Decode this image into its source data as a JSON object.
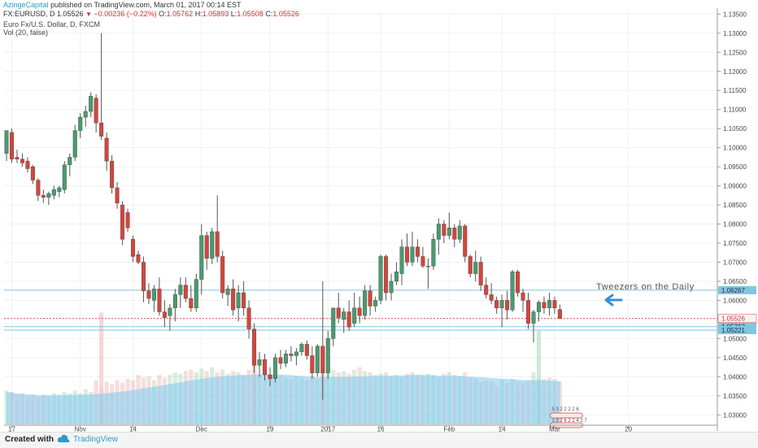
{
  "header": {
    "author": "AzingeCapital",
    "published_text": "published on TradingView.com, March 01, 2017 00:14 EST",
    "symbol": "FX:EURUSD, D",
    "last_price": "1.05526",
    "change": "−0.00236 (−0.22%)",
    "o_label": "O:",
    "o_value": "1.05762",
    "h_label": "H:",
    "h_value": "1.05893",
    "l_label": "L:",
    "l_value": "1.05508",
    "c_label": "C:",
    "c_value": "1.05526",
    "description": "Euro Fx/U.S. Dollar, D, FXCM",
    "volume_indicator": "Vol (20, false)"
  },
  "footer": {
    "created_with": "Created with",
    "brand": "TradingView"
  },
  "colors": {
    "up": "#4a9a6f",
    "down": "#d3463c",
    "volume": "#8ccfe8",
    "volume_ma": "#7fc9ef",
    "accent": "#2a9ec4"
  },
  "chart_data": {
    "type": "candlestick",
    "symbol": "EURUSD",
    "timeframe": "D",
    "y_axis": {
      "range": [
        1.0275,
        1.1355
      ],
      "ticks": [
        "1.13500",
        "1.13000",
        "1.12500",
        "1.12000",
        "1.11500",
        "1.11000",
        "1.10500",
        "1.10000",
        "1.09500",
        "1.09000",
        "1.08500",
        "1.08000",
        "1.07500",
        "1.07000",
        "1.06500",
        "1.06000",
        "1.05500",
        "1.05000",
        "1.04500",
        "1.04000",
        "1.03500",
        "1.03000"
      ]
    },
    "x_axis": {
      "tick_labels": [
        {
          "label": "17",
          "index": 1
        },
        {
          "label": "Nov",
          "index": 14
        },
        {
          "label": "14",
          "index": 24
        },
        {
          "label": "Dec",
          "index": 37
        },
        {
          "label": "19",
          "index": 50
        },
        {
          "label": "2017",
          "index": 61
        },
        {
          "label": "16",
          "index": 71
        },
        {
          "label": "Feb",
          "index": 84
        },
        {
          "label": "14",
          "index": 94
        },
        {
          "label": "Mar",
          "index": 104
        },
        {
          "label": "20",
          "index": 118
        }
      ]
    },
    "candles": [
      [
        1.0985,
        1.1045,
        1.0965,
        1.1045
      ],
      [
        1.104,
        1.105,
        1.096,
        1.097
      ],
      [
        1.0975,
        1.0995,
        1.096,
        1.097
      ],
      [
        1.097,
        1.0985,
        1.095,
        1.096
      ],
      [
        1.0965,
        1.0975,
        1.0935,
        1.0945
      ],
      [
        1.095,
        1.0955,
        1.0905,
        1.0915
      ],
      [
        1.0915,
        1.092,
        1.086,
        1.0875
      ],
      [
        1.0875,
        1.089,
        1.0855,
        1.087
      ],
      [
        1.087,
        1.0885,
        1.085,
        1.088
      ],
      [
        1.0875,
        1.09,
        1.0865,
        1.089
      ],
      [
        1.0885,
        1.09,
        1.087,
        1.0895
      ],
      [
        1.089,
        1.0965,
        1.088,
        1.0955
      ],
      [
        1.0955,
        1.0985,
        1.0925,
        1.0975
      ],
      [
        1.0975,
        1.106,
        1.0965,
        1.1045
      ],
      [
        1.1045,
        1.109,
        1.1025,
        1.108
      ],
      [
        1.108,
        1.111,
        1.1055,
        1.1095
      ],
      [
        1.1095,
        1.1145,
        1.108,
        1.1135
      ],
      [
        1.113,
        1.114,
        1.104,
        1.1065
      ],
      [
        1.1065,
        1.13,
        1.102,
        1.103
      ],
      [
        1.1025,
        1.104,
        1.094,
        1.0965
      ],
      [
        1.0965,
        1.098,
        1.088,
        1.0895
      ],
      [
        1.0895,
        1.091,
        1.084,
        1.0855
      ],
      [
        1.085,
        1.086,
        1.0745,
        1.076
      ],
      [
        1.083,
        1.084,
        1.078,
        1.079
      ],
      [
        1.076,
        1.077,
        1.07,
        1.0715
      ],
      [
        1.072,
        1.073,
        1.0695,
        1.07
      ],
      [
        1.07,
        1.0715,
        1.0595,
        1.0625
      ],
      [
        1.0625,
        1.0645,
        1.059,
        1.0605
      ],
      [
        1.06,
        1.064,
        1.057,
        1.063
      ],
      [
        1.063,
        1.066,
        1.056,
        1.057
      ],
      [
        1.057,
        1.06,
        1.053,
        1.0555
      ],
      [
        1.056,
        1.059,
        1.052,
        1.058
      ],
      [
        1.058,
        1.063,
        1.0545,
        1.0615
      ],
      [
        1.0615,
        1.066,
        1.058,
        1.064
      ],
      [
        1.064,
        1.066,
        1.0595,
        1.0605
      ],
      [
        1.0605,
        1.064,
        1.057,
        1.058
      ],
      [
        1.058,
        1.067,
        1.057,
        1.0655
      ],
      [
        1.0655,
        1.08,
        1.0615,
        1.077
      ],
      [
        1.077,
        1.078,
        1.068,
        1.071
      ],
      [
        1.071,
        1.079,
        1.0695,
        1.078
      ],
      [
        1.078,
        1.0875,
        1.07,
        1.0715
      ],
      [
        1.0715,
        1.073,
        1.0605,
        1.062
      ],
      [
        1.0615,
        1.064,
        1.0585,
        1.063
      ],
      [
        1.063,
        1.0655,
        1.056,
        1.0575
      ],
      [
        1.058,
        1.064,
        1.0545,
        1.062
      ],
      [
        1.062,
        1.065,
        1.056,
        1.058
      ],
      [
        1.058,
        1.06,
        1.05,
        1.0525
      ],
      [
        1.0525,
        1.054,
        1.041,
        1.043
      ],
      [
        1.043,
        1.0465,
        1.04,
        1.0445
      ],
      [
        1.0445,
        1.046,
        1.039,
        1.0405
      ],
      [
        1.0405,
        1.0425,
        1.0375,
        1.0395
      ],
      [
        1.0395,
        1.046,
        1.0385,
        1.045
      ],
      [
        1.045,
        1.047,
        1.042,
        1.0435
      ],
      [
        1.0435,
        1.047,
        1.0425,
        1.046
      ],
      [
        1.046,
        1.048,
        1.044,
        1.0455
      ],
      [
        1.0455,
        1.0475,
        1.043,
        1.0465
      ],
      [
        1.0465,
        1.049,
        1.0455,
        1.0485
      ],
      [
        1.0485,
        1.0495,
        1.0445,
        1.0455
      ],
      [
        1.0455,
        1.048,
        1.0395,
        1.041
      ],
      [
        1.041,
        1.0485,
        1.04,
        1.048
      ],
      [
        1.048,
        1.065,
        1.034,
        1.041
      ],
      [
        1.041,
        1.052,
        1.0395,
        1.05
      ],
      [
        1.05,
        1.058,
        1.048,
        1.058
      ],
      [
        1.058,
        1.062,
        1.054,
        1.0555
      ],
      [
        1.055,
        1.058,
        1.0515,
        1.057
      ],
      [
        1.057,
        1.06,
        1.052,
        1.053
      ],
      [
        1.054,
        1.062,
        1.053,
        1.058
      ],
      [
        1.058,
        1.061,
        1.054,
        1.056
      ],
      [
        1.056,
        1.064,
        1.055,
        1.0625
      ],
      [
        1.0625,
        1.064,
        1.056,
        1.0585
      ],
      [
        1.0585,
        1.061,
        1.057,
        1.06
      ],
      [
        1.06,
        1.072,
        1.059,
        1.0715
      ],
      [
        1.0715,
        1.072,
        1.06,
        1.062
      ],
      [
        1.062,
        1.067,
        1.06,
        1.065
      ],
      [
        1.065,
        1.07,
        1.064,
        1.0675
      ],
      [
        1.067,
        1.076,
        1.064,
        1.074
      ],
      [
        1.074,
        1.0775,
        1.069,
        1.07
      ],
      [
        1.07,
        1.078,
        1.069,
        1.074
      ],
      [
        1.074,
        1.076,
        1.07,
        1.0715
      ],
      [
        1.0715,
        1.074,
        1.0685,
        1.069
      ],
      [
        1.069,
        1.071,
        1.063,
        1.069
      ],
      [
        1.069,
        1.0775,
        1.068,
        1.076
      ],
      [
        1.076,
        1.0815,
        1.072,
        1.08
      ],
      [
        1.08,
        1.081,
        1.075,
        1.077
      ],
      [
        1.077,
        1.083,
        1.076,
        1.079
      ],
      [
        1.079,
        1.08,
        1.074,
        1.076
      ],
      [
        1.076,
        1.081,
        1.075,
        1.0795
      ],
      [
        1.0795,
        1.08,
        1.07,
        1.0715
      ],
      [
        1.0715,
        1.072,
        1.066,
        1.067
      ],
      [
        1.067,
        1.073,
        1.065,
        1.07
      ],
      [
        1.07,
        1.0715,
        1.0625,
        1.064
      ],
      [
        1.064,
        1.066,
        1.0605,
        1.0615
      ],
      [
        1.0615,
        1.0645,
        1.059,
        1.06
      ],
      [
        1.06,
        1.061,
        1.0565,
        1.058
      ],
      [
        1.058,
        1.0615,
        1.053,
        1.06
      ],
      [
        1.06,
        1.0625,
        1.055,
        1.0575
      ],
      [
        1.0575,
        1.068,
        1.057,
        1.0675
      ],
      [
        1.0675,
        1.068,
        1.061,
        1.062
      ],
      [
        1.062,
        1.063,
        1.057,
        1.06
      ],
      [
        1.06,
        1.062,
        1.0525,
        1.054
      ],
      [
        1.054,
        1.0575,
        1.049,
        1.057
      ],
      [
        1.057,
        1.06,
        1.0545,
        1.0595
      ],
      [
        1.0595,
        1.061,
        1.0565,
        1.058
      ],
      [
        1.058,
        1.062,
        1.056,
        1.06
      ],
      [
        1.06,
        1.061,
        1.0565,
        1.058
      ],
      [
        1.0576,
        1.0589,
        1.0551,
        1.0553
      ]
    ],
    "volume": [
      0.26,
      0.25,
      0.23,
      0.24,
      0.22,
      0.23,
      0.21,
      0.23,
      0.22,
      0.24,
      0.23,
      0.25,
      0.24,
      0.26,
      0.24,
      0.27,
      0.25,
      0.34,
      0.28,
      0.33,
      0.31,
      0.34,
      0.32,
      0.35,
      0.34,
      0.38,
      0.36,
      0.37,
      0.34,
      0.38,
      0.36,
      0.38,
      0.4,
      0.39,
      0.41,
      0.42,
      0.4,
      0.43,
      0.41,
      0.44,
      0.4,
      0.42,
      0.39,
      0.41,
      0.4,
      0.38,
      0.42,
      0.41,
      0.38,
      0.36,
      0.37,
      0.35,
      0.38,
      0.36,
      0.35,
      0.37,
      0.36,
      0.34,
      0.37,
      0.35,
      0.45,
      0.4,
      0.42,
      0.4,
      0.41,
      0.39,
      0.42,
      0.44,
      0.41,
      0.4,
      0.38,
      0.39,
      0.4,
      0.37,
      0.38,
      0.36,
      0.39,
      0.4,
      0.38,
      0.37,
      0.39,
      0.38,
      0.36,
      0.39,
      0.4,
      0.38,
      0.37,
      0.4,
      0.36,
      0.35,
      0.33,
      0.34,
      0.33,
      0.3,
      0.34,
      0.32,
      0.35,
      0.33,
      0.32,
      0.34,
      0.4,
      0.36,
      0.35,
      0.36,
      0.35,
      0.33
    ],
    "volume_max_ref": 1.0,
    "volume_spikes": [
      {
        "index": 18,
        "value": 0.86
      },
      {
        "index": 47,
        "value": 0.6
      },
      {
        "index": 60,
        "value": 0.58
      },
      {
        "index": 101,
        "value": 0.72
      }
    ],
    "current_price": {
      "value": 1.05526,
      "label": "1.05526"
    },
    "price_labels": [
      {
        "value": 1.06267,
        "label": "1.06267"
      },
      {
        "value": 1.05312,
        "label": "1.05312"
      },
      {
        "value": 1.05221,
        "label": "1.05221"
      }
    ],
    "annotation": {
      "text": "Tweezers on the Daily"
    },
    "events_label": "5 3 2 2 2 2 6",
    "events_label2": "1 3 2 6 2 2 4 2 7"
  }
}
